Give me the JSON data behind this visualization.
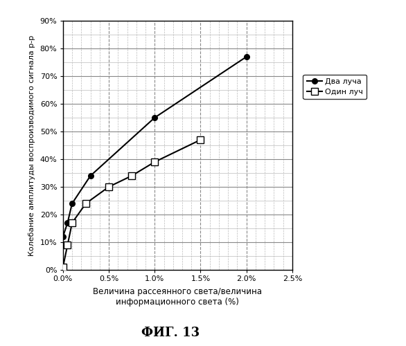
{
  "two_beams_x": [
    0.0,
    0.0005,
    0.001,
    0.003,
    0.01,
    0.02
  ],
  "two_beams_y": [
    0.12,
    0.17,
    0.24,
    0.34,
    0.55,
    0.77
  ],
  "one_beam_x": [
    0.0,
    0.0005,
    0.001,
    0.0025,
    0.005,
    0.0075,
    0.01,
    0.015
  ],
  "one_beam_y": [
    0.01,
    0.09,
    0.17,
    0.24,
    0.3,
    0.34,
    0.39,
    0.47
  ],
  "xlabel_line1": "Величина рассеянного света/величина",
  "xlabel_line2": "информационного света (%)",
  "ylabel": "Колебание амплитуды воспроизводимого сигнала р-р",
  "legend_two": "Два луча",
  "legend_one": "Один луч",
  "figure_label": "ФИГ. 13",
  "xlim": [
    0.0,
    0.025
  ],
  "ylim": [
    0.0,
    0.9
  ],
  "xticks": [
    0.0,
    0.005,
    0.01,
    0.015,
    0.02,
    0.025
  ],
  "xtick_labels": [
    "0.0%",
    "0.5%",
    "1.0%",
    "1.5%",
    "2.0%",
    "2.5%"
  ],
  "yticks": [
    0.0,
    0.1,
    0.2,
    0.3,
    0.4,
    0.5,
    0.6,
    0.7,
    0.8,
    0.9
  ],
  "ytick_labels": [
    "0%",
    "10%",
    "20%",
    "30%",
    "40%",
    "50%",
    "60%",
    "70%",
    "80%",
    "90%"
  ],
  "line_color": "#000000",
  "bg_color": "#ffffff",
  "grid_major_color": "#888888",
  "grid_minor_color": "#bbbbbb"
}
